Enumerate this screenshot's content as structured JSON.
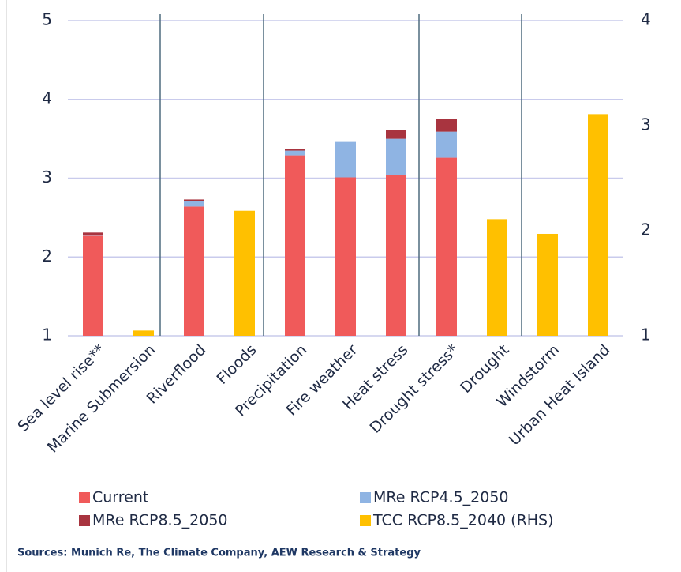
{
  "chart_data": {
    "type": "bar",
    "categories": [
      "Sea level rise**",
      "Marine Submersion",
      "Riverflood",
      "Floods",
      "Precipitation",
      "Fire weather",
      "Heat stress",
      "Drought stress*",
      "Drought",
      "Windstorm",
      "Urban Heat Island"
    ],
    "series": [
      {
        "name": "Current",
        "color": "#f05a5a",
        "values": [
          1.27,
          null,
          1.64,
          null,
          2.29,
          2.01,
          2.04,
          2.26,
          null,
          null,
          null
        ]
      },
      {
        "name": "MRe RCP4.5_2050",
        "color": "#8fb4e3",
        "values": [
          0.01,
          null,
          0.07,
          null,
          0.06,
          0.45,
          0.46,
          0.33,
          null,
          null,
          null
        ]
      },
      {
        "name": "MRe RCP8.5_2050",
        "color": "#a8343f",
        "values": [
          0.03,
          null,
          0.02,
          null,
          0.02,
          0,
          0.11,
          0.16,
          null,
          null,
          null
        ]
      },
      {
        "name": "TCC RCP8.5_2040 (RHS)",
        "color": "#ffc000",
        "axis": "y2",
        "values": [
          null,
          1.05,
          null,
          2.19,
          null,
          null,
          null,
          null,
          2.11,
          1.97,
          3.11
        ]
      }
    ],
    "ylim": [
      1,
      5
    ],
    "yticks": [
      1,
      2,
      3,
      4,
      5
    ],
    "y2lim": [
      1,
      4
    ],
    "y2ticks": [
      1,
      2,
      3,
      4
    ],
    "grid": true,
    "stacked": true,
    "legend": "bottom",
    "source": "Sources: Munich Re, The Climate Company, AEW Research & Strategy"
  }
}
